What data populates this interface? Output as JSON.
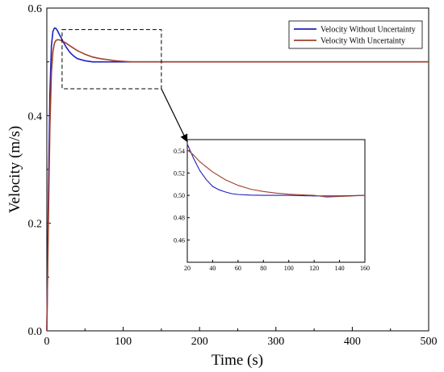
{
  "chart_data": {
    "type": "line",
    "xlabel": "Time (s)",
    "ylabel": "Velocity  (m/s)",
    "xlim": [
      0,
      500
    ],
    "ylim": [
      0,
      0.6
    ],
    "x_ticks": [
      "0",
      "100",
      "200",
      "300",
      "400",
      "500"
    ],
    "y_ticks": [
      "0.0",
      "0.2",
      "0.4",
      "0.6"
    ],
    "grid": false,
    "legend_position": "top-right",
    "series": [
      {
        "name": "Velocity Without Uncertainty",
        "color": "#1f1fbf",
        "x": [
          0,
          2,
          4,
          6,
          8,
          10,
          12,
          14,
          16,
          18,
          20,
          25,
          30,
          35,
          40,
          50,
          60,
          70,
          80,
          100,
          120,
          150,
          200,
          300,
          400,
          500
        ],
        "y": [
          0,
          0.25,
          0.44,
          0.53,
          0.557,
          0.563,
          0.562,
          0.558,
          0.552,
          0.547,
          0.541,
          0.528,
          0.518,
          0.511,
          0.506,
          0.502,
          0.5,
          0.5,
          0.5,
          0.5,
          0.5,
          0.5,
          0.5,
          0.5,
          0.5,
          0.5
        ]
      },
      {
        "name": "Velocity With Uncertainty",
        "color": "#a0402a",
        "x": [
          0,
          2,
          4,
          6,
          8,
          10,
          12,
          14,
          16,
          18,
          20,
          25,
          30,
          40,
          50,
          60,
          70,
          80,
          90,
          100,
          110,
          120,
          130,
          140,
          150,
          160,
          200,
          300,
          400,
          500
        ],
        "y": [
          0,
          0.2,
          0.38,
          0.48,
          0.52,
          0.535,
          0.54,
          0.541,
          0.541,
          0.54,
          0.539,
          0.535,
          0.53,
          0.521,
          0.514,
          0.509,
          0.506,
          0.504,
          0.502,
          0.501,
          0.5,
          0.5,
          0.5,
          0.5,
          0.5,
          0.5,
          0.5,
          0.5,
          0.5,
          0.5
        ]
      }
    ],
    "inset": {
      "xlim": [
        20,
        160
      ],
      "ylim": [
        0.44,
        0.55
      ],
      "x_ticks": [
        "20",
        "40",
        "60",
        "80",
        "100",
        "120",
        "140",
        "160"
      ],
      "y_ticks": [
        "0.46",
        "0.48",
        "0.50",
        "0.52",
        "0.54"
      ],
      "zoom_window": {
        "x": [
          20,
          150
        ],
        "y": [
          0.45,
          0.56
        ]
      },
      "series": [
        {
          "color": "#1f1fbf",
          "x": [
            20,
            25,
            30,
            35,
            40,
            45,
            50,
            55,
            60,
            70,
            80,
            100,
            120,
            140,
            160
          ],
          "y": [
            0.546,
            0.533,
            0.522,
            0.514,
            0.508,
            0.505,
            0.503,
            0.5015,
            0.5008,
            0.5002,
            0.5,
            0.5,
            0.4995,
            0.4995,
            0.5
          ]
        },
        {
          "color": "#a0402a",
          "x": [
            20,
            25,
            30,
            40,
            50,
            60,
            70,
            80,
            90,
            100,
            110,
            120,
            130,
            140,
            150,
            160
          ],
          "y": [
            0.541,
            0.536,
            0.53,
            0.521,
            0.514,
            0.509,
            0.5055,
            0.5035,
            0.502,
            0.501,
            0.5005,
            0.5,
            0.4985,
            0.499,
            0.4995,
            0.5
          ]
        }
      ]
    }
  }
}
